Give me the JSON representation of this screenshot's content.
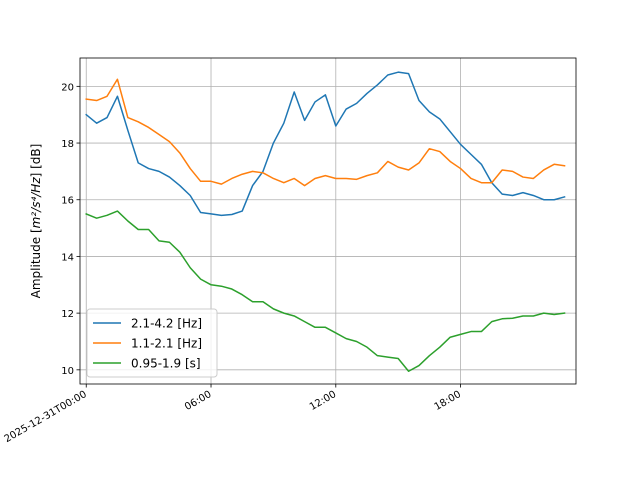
{
  "chart_data": {
    "type": "line",
    "xlabel": "",
    "ylabel_main": "Amplitude [",
    "ylabel_units": "m²/s⁴/Hz",
    "ylabel_tail": "] [dB]",
    "ylim": [
      9.5,
      21
    ],
    "xlim": [
      -0.3,
      23.55
    ],
    "yticks": [
      10,
      12,
      14,
      16,
      18,
      20
    ],
    "ytick_labels": [
      "10",
      "12",
      "14",
      "16",
      "18",
      "20"
    ],
    "xticks": [
      0,
      6,
      12,
      18
    ],
    "xtick_labels": [
      "2025-12-31T00:00",
      "06:00",
      "12:00",
      "18:00"
    ],
    "grid": true,
    "legend_position": "lower-left",
    "x": [
      0,
      0.5,
      1,
      1.5,
      2,
      2.5,
      3,
      3.5,
      4,
      4.5,
      5,
      5.5,
      6,
      6.5,
      7,
      7.5,
      8,
      8.5,
      9,
      9.5,
      10,
      10.5,
      11,
      11.5,
      12,
      12.5,
      13,
      13.5,
      14,
      14.5,
      15,
      15.5,
      16,
      16.5,
      17,
      17.5,
      18,
      18.5,
      19,
      19.5,
      20,
      20.5,
      21,
      21.5,
      22,
      22.5,
      23
    ],
    "series": [
      {
        "name": "2.1-4.2 [Hz]",
        "color": "#1f77b4",
        "values": [
          19.0,
          18.7,
          18.9,
          19.65,
          18.45,
          17.3,
          17.1,
          17.0,
          16.8,
          16.5,
          16.15,
          15.55,
          15.5,
          15.45,
          15.48,
          15.6,
          16.5,
          17.0,
          18.0,
          18.7,
          19.8,
          18.8,
          19.45,
          19.7,
          18.6,
          19.2,
          19.4,
          19.75,
          20.05,
          20.4,
          20.5,
          20.45,
          19.5,
          19.1,
          18.85,
          18.4,
          17.95,
          17.6,
          17.25,
          16.6,
          16.2,
          16.15,
          16.25,
          16.15,
          16.0,
          16.0,
          16.1
        ]
      },
      {
        "name": "1.1-2.1 [Hz]",
        "color": "#ff7f0e",
        "values": [
          19.55,
          19.5,
          19.65,
          20.25,
          18.9,
          18.75,
          18.55,
          18.3,
          18.05,
          17.65,
          17.1,
          16.65,
          16.65,
          16.55,
          16.75,
          16.9,
          17.0,
          16.95,
          16.75,
          16.6,
          16.75,
          16.5,
          16.75,
          16.85,
          16.75,
          16.75,
          16.72,
          16.85,
          16.95,
          17.35,
          17.15,
          17.05,
          17.3,
          17.8,
          17.7,
          17.35,
          17.1,
          16.75,
          16.6,
          16.6,
          17.05,
          17.0,
          16.8,
          16.75,
          17.05,
          17.25,
          17.2
        ]
      },
      {
        "name": "0.95-1.9 [s]",
        "color": "#2ca02c",
        "values": [
          15.5,
          15.35,
          15.45,
          15.6,
          15.25,
          14.95,
          14.95,
          14.55,
          14.5,
          14.15,
          13.6,
          13.2,
          13.0,
          12.95,
          12.85,
          12.65,
          12.4,
          12.4,
          12.15,
          12.0,
          11.9,
          11.7,
          11.5,
          11.5,
          11.3,
          11.1,
          11.0,
          10.8,
          10.5,
          10.45,
          10.4,
          9.95,
          10.15,
          10.5,
          10.8,
          11.15,
          11.25,
          11.35,
          11.35,
          11.7,
          11.8,
          11.82,
          11.9,
          11.9,
          12.0,
          11.95,
          12.0
        ]
      }
    ]
  }
}
